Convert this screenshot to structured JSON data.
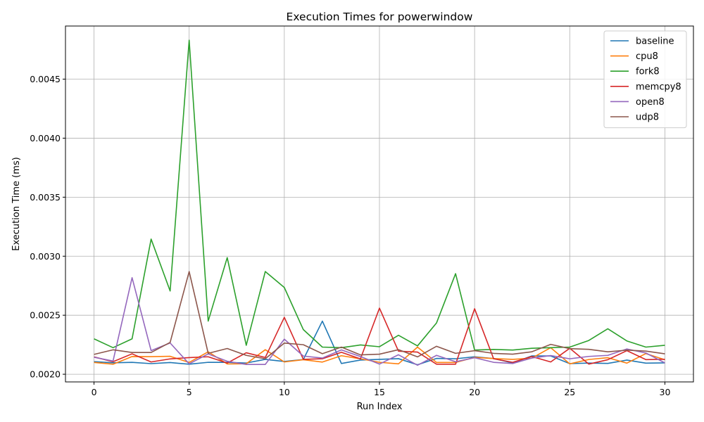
{
  "chart_data": {
    "type": "line",
    "title": "Execution Times for powerwindow",
    "xlabel": "Run Index",
    "ylabel": "Execution Time (ms)",
    "xlim": [
      -1.5,
      31.5
    ],
    "ylim": [
      0.001935,
      0.00495
    ],
    "xticks": [
      0,
      5,
      10,
      15,
      20,
      25,
      30
    ],
    "yticks": [
      0.002,
      0.0025,
      0.003,
      0.0035,
      0.004,
      0.0045
    ],
    "ytick_labels": [
      "0.0020",
      "0.0025",
      "0.0030",
      "0.0035",
      "0.0040",
      "0.0045"
    ],
    "grid": true,
    "legend_position": "top-right",
    "x": [
      0,
      1,
      2,
      3,
      4,
      5,
      6,
      7,
      8,
      9,
      10,
      11,
      12,
      13,
      14,
      15,
      16,
      17,
      18,
      19,
      20,
      21,
      22,
      23,
      24,
      25,
      26,
      27,
      28,
      29,
      30
    ],
    "series": [
      {
        "name": "baseline",
        "color": "#1f77b4",
        "values": [
          0.002107,
          0.002097,
          0.002101,
          0.00209,
          0.002099,
          0.002085,
          0.002101,
          0.002101,
          0.002095,
          0.002126,
          0.002108,
          0.002125,
          0.00245,
          0.002091,
          0.00212,
          0.002126,
          0.002132,
          0.00208,
          0.002134,
          0.002131,
          0.002148,
          0.002133,
          0.002095,
          0.002155,
          0.002155,
          0.00209,
          0.002095,
          0.002092,
          0.00212,
          0.002094,
          0.002096
        ]
      },
      {
        "name": "cpu8",
        "color": "#ff7f0e",
        "values": [
          0.0021,
          0.002085,
          0.00215,
          0.002149,
          0.002152,
          0.0021,
          0.00219,
          0.002087,
          0.002089,
          0.002208,
          0.002104,
          0.002123,
          0.002103,
          0.002157,
          0.002131,
          0.002101,
          0.002088,
          0.00223,
          0.0021,
          0.0021,
          0.002143,
          0.002133,
          0.002126,
          0.002136,
          0.002225,
          0.002088,
          0.002125,
          0.00214,
          0.002094,
          0.002175,
          0.002123
        ]
      },
      {
        "name": "fork8",
        "color": "#2ca02c",
        "values": [
          0.0023,
          0.002225,
          0.0023,
          0.003145,
          0.002705,
          0.00483,
          0.00245,
          0.002988,
          0.002245,
          0.00287,
          0.002735,
          0.002378,
          0.00223,
          0.002225,
          0.002248,
          0.002233,
          0.00233,
          0.00224,
          0.002435,
          0.002852,
          0.002205,
          0.00221,
          0.002205,
          0.00222,
          0.002225,
          0.00223,
          0.002286,
          0.002385,
          0.002282,
          0.00223,
          0.002245
        ]
      },
      {
        "name": "memcpy8",
        "color": "#d62728",
        "values": [
          0.002147,
          0.002106,
          0.002173,
          0.002104,
          0.00213,
          0.002141,
          0.002148,
          0.002095,
          0.002182,
          0.002142,
          0.002482,
          0.002126,
          0.002131,
          0.002186,
          0.00213,
          0.00256,
          0.002195,
          0.002188,
          0.002085,
          0.002085,
          0.002555,
          0.002131,
          0.002101,
          0.00215,
          0.002104,
          0.00222,
          0.002086,
          0.002123,
          0.0022,
          0.002124,
          0.002127
        ]
      },
      {
        "name": "open8",
        "color": "#9467bd",
        "values": [
          0.002144,
          0.002112,
          0.002818,
          0.0022,
          0.002265,
          0.002088,
          0.002172,
          0.00211,
          0.002083,
          0.002083,
          0.002297,
          0.002154,
          0.002137,
          0.002206,
          0.00215,
          0.002086,
          0.002165,
          0.002076,
          0.00216,
          0.002106,
          0.00214,
          0.002101,
          0.002091,
          0.002137,
          0.002158,
          0.002131,
          0.002151,
          0.00216,
          0.002214,
          0.00218,
          0.002096
        ]
      },
      {
        "name": "udp8",
        "color": "#8c564b",
        "values": [
          0.002168,
          0.002207,
          0.002184,
          0.002184,
          0.00227,
          0.00287,
          0.002177,
          0.002218,
          0.00216,
          0.002131,
          0.002264,
          0.00225,
          0.002174,
          0.00223,
          0.002164,
          0.00217,
          0.002208,
          0.002147,
          0.002237,
          0.002177,
          0.0022,
          0.002177,
          0.00217,
          0.00219,
          0.002253,
          0.002217,
          0.002211,
          0.00219,
          0.002204,
          0.002196,
          0.002173
        ]
      }
    ]
  }
}
